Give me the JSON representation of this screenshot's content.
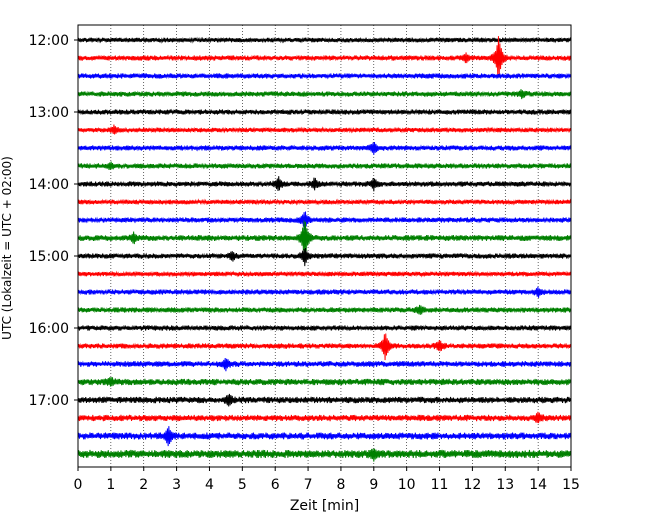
{
  "chart_data": {
    "type": "line",
    "title": "",
    "xlabel": "Zeit  [min]",
    "ylabel": "UTC (Lokalzeit = UTC + 02:00)",
    "xlim": [
      0,
      15
    ],
    "x_ticks": [
      0,
      1,
      2,
      3,
      4,
      5,
      6,
      7,
      8,
      9,
      10,
      11,
      12,
      13,
      14,
      15
    ],
    "x_tick_labels": [
      "0",
      "1",
      "2",
      "3",
      "4",
      "5",
      "6",
      "7",
      "8",
      "9",
      "10",
      "11",
      "12",
      "13",
      "14",
      "15"
    ],
    "y_tick_labels": [
      "12:00",
      "13:00",
      "14:00",
      "15:00",
      "16:00",
      "17:00"
    ],
    "y_tick_rows": [
      0,
      4,
      8,
      12,
      16,
      20
    ],
    "trace_interval_min": 15,
    "grid": "vertical dotted at each minute",
    "legend": "none",
    "colors": [
      "#000000",
      "#ff0000",
      "#0000ff",
      "#008000"
    ],
    "series": [
      {
        "start": "12:00",
        "color": "#000000",
        "noise": 1.6,
        "events": []
      },
      {
        "start": "12:15",
        "color": "#ff0000",
        "noise": 1.8,
        "events": [
          {
            "t_min": 12.8,
            "amp": 22
          },
          {
            "t_min": 11.8,
            "amp": 4
          }
        ]
      },
      {
        "start": "12:30",
        "color": "#0000ff",
        "noise": 1.8,
        "events": []
      },
      {
        "start": "12:45",
        "color": "#008000",
        "noise": 1.8,
        "events": [
          {
            "t_min": 13.5,
            "amp": 3
          }
        ]
      },
      {
        "start": "13:00",
        "color": "#000000",
        "noise": 1.8,
        "events": []
      },
      {
        "start": "13:15",
        "color": "#ff0000",
        "noise": 1.6,
        "events": [
          {
            "t_min": 1.1,
            "amp": 4
          }
        ]
      },
      {
        "start": "13:30",
        "color": "#0000ff",
        "noise": 1.8,
        "events": [
          {
            "t_min": 9.0,
            "amp": 5
          }
        ]
      },
      {
        "start": "13:45",
        "color": "#008000",
        "noise": 1.8,
        "events": [
          {
            "t_min": 1.0,
            "amp": 3
          }
        ]
      },
      {
        "start": "14:00",
        "color": "#000000",
        "noise": 1.8,
        "events": [
          {
            "t_min": 6.1,
            "amp": 6
          },
          {
            "t_min": 7.2,
            "amp": 5
          },
          {
            "t_min": 9.0,
            "amp": 5
          }
        ]
      },
      {
        "start": "14:15",
        "color": "#ff0000",
        "noise": 1.6,
        "events": []
      },
      {
        "start": "14:30",
        "color": "#0000ff",
        "noise": 1.8,
        "events": [
          {
            "t_min": 6.9,
            "amp": 8
          }
        ]
      },
      {
        "start": "14:45",
        "color": "#008000",
        "noise": 2.0,
        "events": [
          {
            "t_min": 6.9,
            "amp": 20
          },
          {
            "t_min": 1.7,
            "amp": 4
          }
        ]
      },
      {
        "start": "15:00",
        "color": "#000000",
        "noise": 1.8,
        "events": [
          {
            "t_min": 6.9,
            "amp": 8
          },
          {
            "t_min": 4.7,
            "amp": 4
          }
        ]
      },
      {
        "start": "15:15",
        "color": "#ff0000",
        "noise": 1.6,
        "events": []
      },
      {
        "start": "15:30",
        "color": "#0000ff",
        "noise": 1.8,
        "events": [
          {
            "t_min": 14.0,
            "amp": 4
          }
        ]
      },
      {
        "start": "15:45",
        "color": "#008000",
        "noise": 1.8,
        "events": [
          {
            "t_min": 10.4,
            "amp": 4
          }
        ]
      },
      {
        "start": "16:00",
        "color": "#000000",
        "noise": 1.8,
        "events": []
      },
      {
        "start": "16:15",
        "color": "#ff0000",
        "noise": 1.8,
        "events": [
          {
            "t_min": 9.35,
            "amp": 14
          },
          {
            "t_min": 11.0,
            "amp": 5
          }
        ]
      },
      {
        "start": "16:30",
        "color": "#0000ff",
        "noise": 2.0,
        "events": [
          {
            "t_min": 4.5,
            "amp": 5
          }
        ]
      },
      {
        "start": "16:45",
        "color": "#008000",
        "noise": 2.2,
        "events": [
          {
            "t_min": 1.0,
            "amp": 4
          }
        ]
      },
      {
        "start": "17:00",
        "color": "#000000",
        "noise": 2.2,
        "events": [
          {
            "t_min": 4.6,
            "amp": 5
          }
        ]
      },
      {
        "start": "17:15",
        "color": "#ff0000",
        "noise": 2.2,
        "events": [
          {
            "t_min": 14.0,
            "amp": 4
          }
        ]
      },
      {
        "start": "17:30",
        "color": "#0000ff",
        "noise": 2.4,
        "events": [
          {
            "t_min": 2.75,
            "amp": 8
          }
        ]
      },
      {
        "start": "17:45",
        "color": "#008000",
        "noise": 2.8,
        "events": [
          {
            "t_min": 9.0,
            "amp": 4
          }
        ]
      }
    ]
  }
}
